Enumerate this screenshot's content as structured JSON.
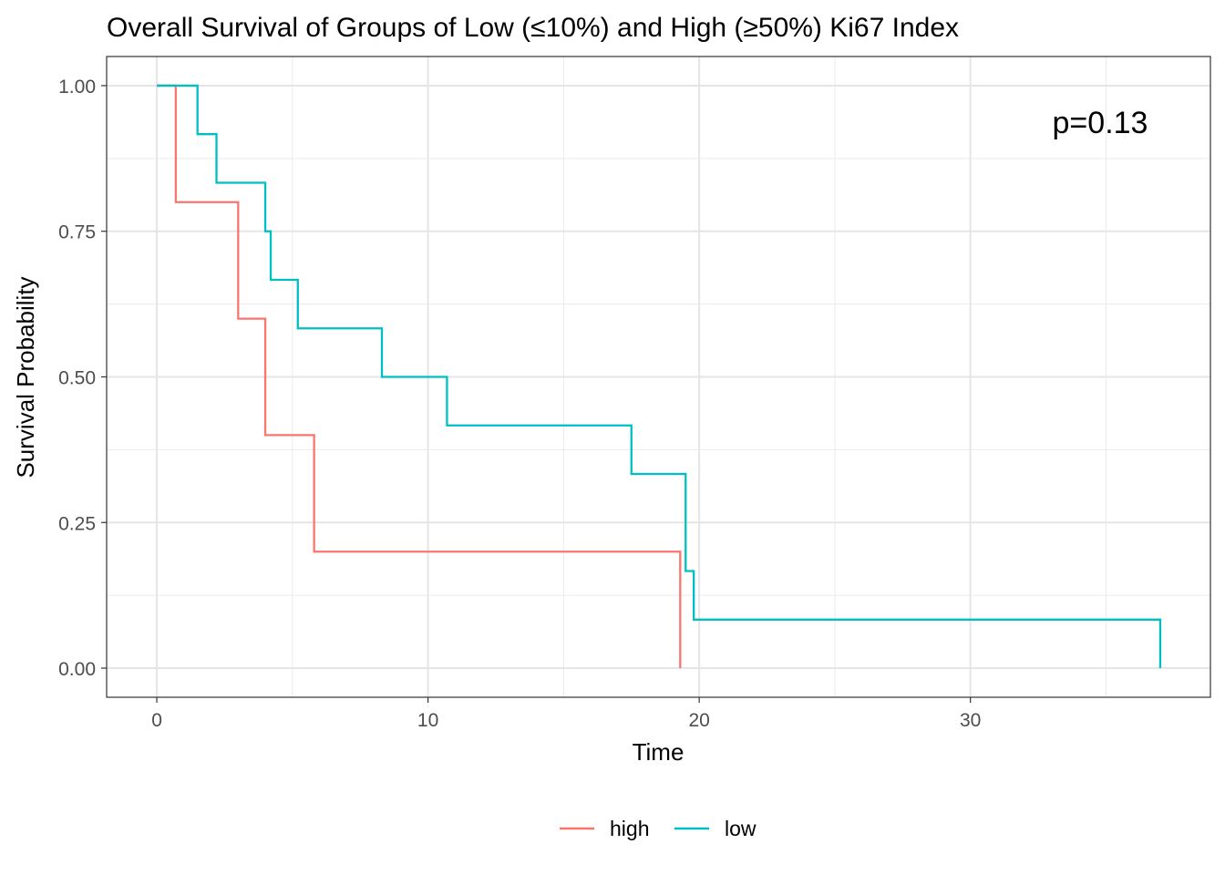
{
  "chart_data": {
    "type": "line",
    "step": true,
    "title": "Overall Survival of Groups of Low (≤10%) and High (≥50%) Ki67 Index",
    "xlabel": "Time",
    "ylabel": "Survival Probability",
    "xlim": [
      -1.85,
      38.85
    ],
    "ylim": [
      -0.05,
      1.05
    ],
    "xticks": [
      0,
      10,
      20,
      30
    ],
    "xtick_labels": [
      "0",
      "10",
      "20",
      "30"
    ],
    "yticks": [
      0,
      0.25,
      0.5,
      0.75,
      1.0
    ],
    "ytick_labels": [
      "0.00",
      "0.25",
      "0.50",
      "0.75",
      "1.00"
    ],
    "grid": true,
    "legend_position": "bottom",
    "annotation": "p=0.13",
    "series": [
      {
        "name": "high",
        "color": "#F8766D",
        "x": [
          0,
          0.7,
          3.0,
          4.0,
          5.8,
          19.3
        ],
        "y": [
          1.0,
          0.8,
          0.6,
          0.4,
          0.2,
          0.0
        ]
      },
      {
        "name": "low",
        "color": "#00BFC4",
        "x": [
          0,
          1.5,
          2.2,
          4.0,
          4.2,
          5.2,
          8.3,
          10.7,
          17.5,
          19.5,
          19.8,
          37.0
        ],
        "y": [
          1.0,
          0.9167,
          0.8333,
          0.75,
          0.6667,
          0.5833,
          0.5,
          0.4167,
          0.3333,
          0.1667,
          0.0833,
          0.0
        ]
      }
    ]
  }
}
